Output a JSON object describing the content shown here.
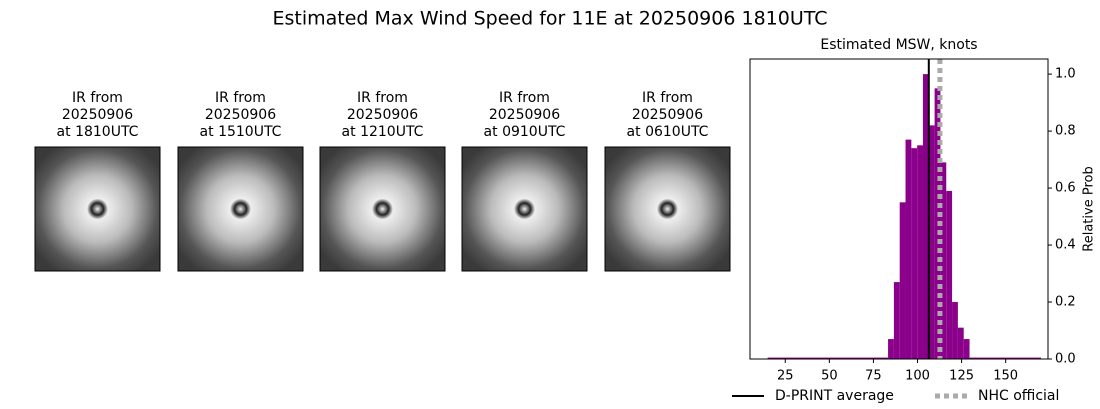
{
  "title": "Estimated Max Wind Speed for 11E at 20250906 1810UTC",
  "panels": [
    {
      "lines": [
        "IR from",
        "20250906",
        "at 1810UTC"
      ]
    },
    {
      "lines": [
        "IR from",
        "20250906",
        "at 1510UTC"
      ]
    },
    {
      "lines": [
        "IR from",
        "20250906",
        "at 1210UTC"
      ]
    },
    {
      "lines": [
        "IR from",
        "20250906",
        "at 0910UTC"
      ]
    },
    {
      "lines": [
        "IR from",
        "20250906",
        "at 0610UTC"
      ]
    }
  ],
  "chart_data": {
    "type": "histogram",
    "title": "Estimated MSW, knots",
    "ylabel": "Relative Prob",
    "color": "#8b008b",
    "bins": [
      15,
      83.3,
      86.6,
      89.9,
      93.2,
      96.5,
      99.8,
      103.1,
      106.4,
      109.7,
      113,
      116.3,
      119.6,
      122.9,
      126.2,
      129.5,
      170
    ],
    "values": [
      0.005,
      0.07,
      0.27,
      0.55,
      0.77,
      0.74,
      0.75,
      1.0,
      0.82,
      0.95,
      0.69,
      0.59,
      0.2,
      0.11,
      0.07,
      0.005
    ],
    "xlim": [
      5,
      174
    ],
    "ylim": [
      0,
      1.053
    ],
    "xticks": [
      25,
      50,
      75,
      100,
      125,
      150
    ],
    "yticks": [
      {
        "value": 0,
        "label": "0.0"
      },
      {
        "value": 0.2,
        "label": "0.2"
      },
      {
        "value": 0.4,
        "label": "0.4"
      },
      {
        "value": 0.6,
        "label": "0.6"
      },
      {
        "value": 0.8,
        "label": "0.8"
      },
      {
        "value": 1,
        "label": "1.0"
      }
    ],
    "reference_lines": [
      {
        "name": "D-PRINT average",
        "value": 106.4,
        "color": "#000000",
        "style": "solid"
      },
      {
        "name": "NHC official",
        "value": 112.7,
        "color": "#aaaaaa",
        "style": "dotted"
      }
    ]
  }
}
